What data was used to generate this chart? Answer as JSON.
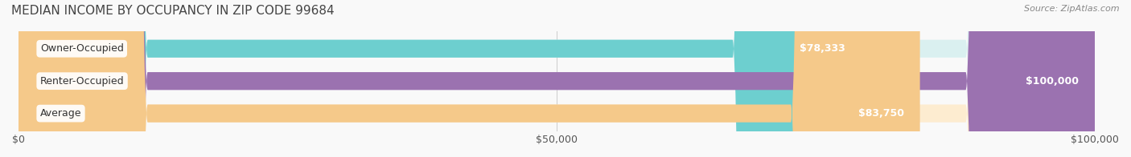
{
  "title": "MEDIAN INCOME BY OCCUPANCY IN ZIP CODE 99684",
  "source": "Source: ZipAtlas.com",
  "categories": [
    "Owner-Occupied",
    "Renter-Occupied",
    "Average"
  ],
  "values": [
    78333,
    100000,
    83750
  ],
  "labels": [
    "$78,333",
    "$100,000",
    "$83,750"
  ],
  "bar_colors": [
    "#6dcfcf",
    "#9b72b0",
    "#f5c98a"
  ],
  "bar_bg_colors": [
    "#daf0f0",
    "#e8d8f0",
    "#fdecd0"
  ],
  "xlim": [
    0,
    100000
  ],
  "xticks": [
    0,
    50000,
    100000
  ],
  "xtick_labels": [
    "$0",
    "$50,000",
    "$100,000"
  ],
  "background_color": "#f9f9f9",
  "title_fontsize": 11,
  "source_fontsize": 8,
  "label_fontsize": 9,
  "bar_label_fontsize": 9,
  "figsize": [
    14.06,
    1.96
  ]
}
